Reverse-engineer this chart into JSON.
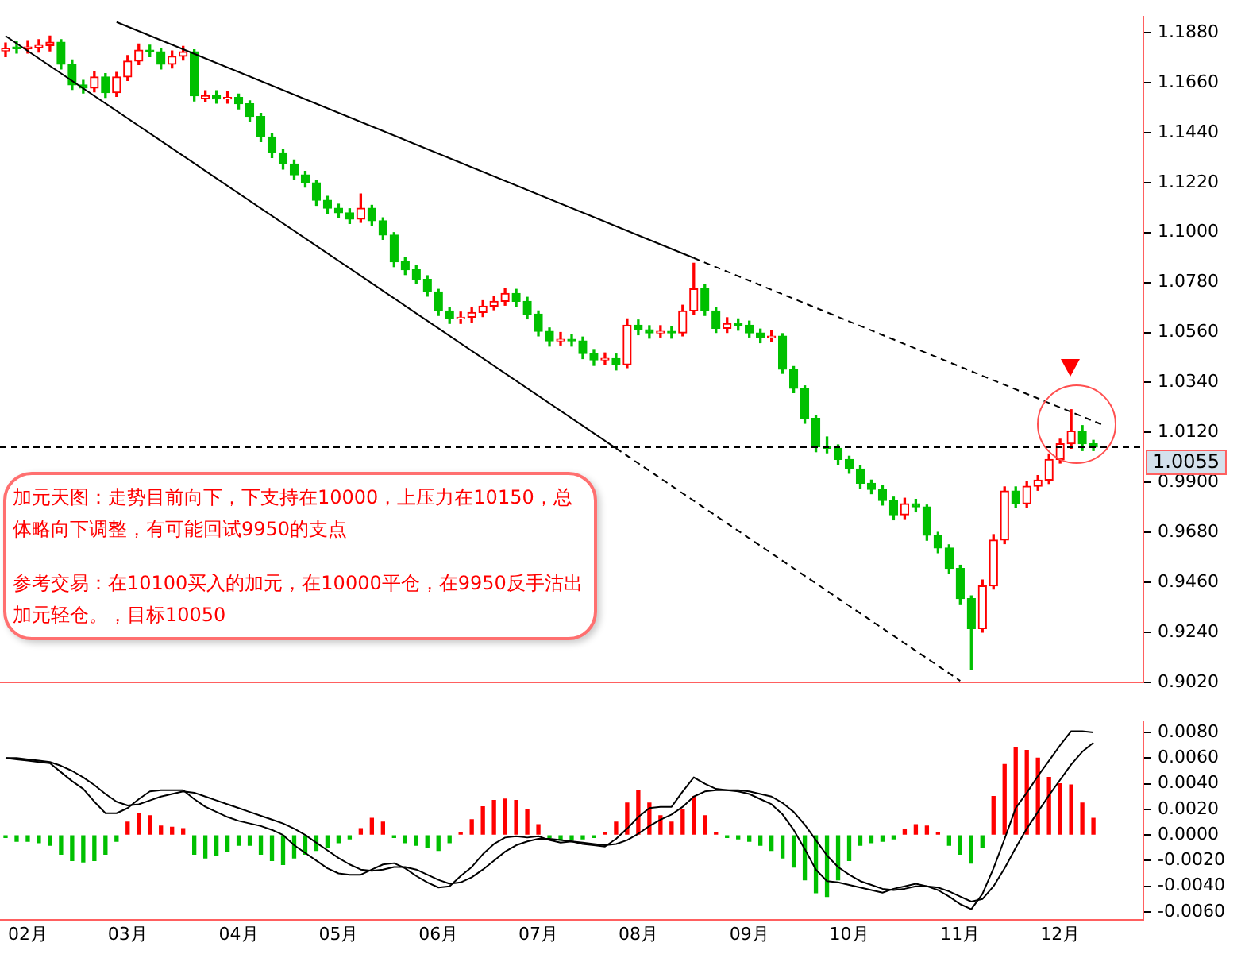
{
  "chart_data": [
    {
      "type": "candlestick",
      "categories": [
        null,
        null,
        null,
        null,
        null,
        null,
        null,
        null,
        null,
        null,
        null,
        null,
        null,
        null,
        null,
        null,
        null,
        null,
        null,
        null,
        null,
        null,
        null,
        null,
        null,
        null,
        null,
        null,
        null,
        null,
        null,
        null,
        null,
        null,
        null,
        null,
        null,
        null,
        null,
        null,
        null,
        null,
        null,
        null,
        null,
        null,
        null,
        null,
        null,
        null,
        null,
        null,
        null,
        null,
        null,
        null,
        null,
        null,
        null,
        null,
        null,
        null,
        null,
        null,
        null,
        null,
        null,
        null,
        null,
        null,
        null,
        null,
        null,
        null,
        null,
        null,
        null,
        null,
        null,
        null,
        null,
        null,
        null,
        null,
        null,
        null,
        null,
        null,
        null,
        null,
        null,
        null,
        null,
        null,
        null,
        null,
        null,
        null,
        null,
        null,
        null,
        null,
        null
      ],
      "colors": [
        "#ff0000",
        "#00c000",
        "#ff0000",
        "#ff0000",
        "#ff0000",
        "#00c000",
        "#00c000",
        "#00c000",
        "#ff0000",
        "#00c000",
        "#ff0000",
        "#ff0000",
        "#ff0000",
        "#00c000",
        "#00c000",
        "#ff0000",
        "#ff0000",
        "#00c000",
        "#ff0000",
        "#00c000",
        "#ff0000",
        "#00c000",
        "#00c000",
        "#00c000",
        "#00c000",
        "#00c000",
        "#00c000",
        "#00c000",
        "#00c000",
        "#00c000",
        "#00c000",
        "#00c000",
        "#ff0000",
        "#00c000",
        "#00c000",
        "#00c000",
        "#00c000",
        "#00c000",
        "#00c000",
        "#00c000",
        "#00c000",
        "#ff0000",
        "#ff0000",
        "#ff0000",
        "#ff0000",
        "#ff0000",
        "#00c000",
        "#00c000",
        "#00c000",
        "#00c000",
        "#ff0000",
        "#00c000",
        "#00c000",
        "#00c000",
        "#ff0000",
        "#00c000",
        "#ff0000",
        "#00c000",
        "#00c000",
        "#ff0000",
        "#00c000",
        "#ff0000",
        "#ff0000",
        "#00c000",
        "#00c000",
        "#ff0000",
        "#00c000",
        "#00c000",
        "#00c000",
        "#ff0000",
        "#00c000",
        "#00c000",
        "#00c000",
        "#00c000",
        "#00c000",
        "#00c000",
        "#00c000",
        "#00c000",
        "#00c000",
        "#00c000",
        "#00c000",
        "#ff0000",
        "#00c000",
        "#00c000",
        "#00c000",
        "#00c000",
        "#00c000",
        "#00c000",
        "#ff0000",
        "#ff0000",
        "#ff0000",
        "#00c000",
        "#ff0000",
        "#ff0000",
        "#ff0000",
        "#ff0000",
        "#ff0000",
        "#00c000",
        "#00c000",
        null,
        null,
        null,
        null
      ],
      "ohlc": [
        [
          1.18,
          1.1835,
          1.1775,
          1.181
        ],
        [
          1.1815,
          1.184,
          1.179,
          1.181
        ],
        [
          1.181,
          1.1845,
          1.179,
          1.1817
        ],
        [
          1.1817,
          1.185,
          1.1795,
          1.1824
        ],
        [
          1.1824,
          1.1865,
          1.18,
          1.1838
        ],
        [
          1.1838,
          1.185,
          1.172,
          1.1741
        ],
        [
          1.1741,
          1.176,
          1.163,
          1.165
        ],
        [
          1.165,
          1.167,
          1.1615,
          1.1636
        ],
        [
          1.1636,
          1.171,
          1.162,
          1.1685
        ],
        [
          1.1685,
          1.17,
          1.1595,
          1.1616
        ],
        [
          1.1616,
          1.1705,
          1.16,
          1.1685
        ],
        [
          1.1685,
          1.178,
          1.167,
          1.1755
        ],
        [
          1.1755,
          1.183,
          1.174,
          1.1803
        ],
        [
          1.1803,
          1.1825,
          1.1775,
          1.1796
        ],
        [
          1.1796,
          1.181,
          1.172,
          1.1741
        ],
        [
          1.1741,
          1.18,
          1.1725,
          1.1776
        ],
        [
          1.1776,
          1.182,
          1.176,
          1.1796
        ],
        [
          1.1796,
          1.1805,
          1.158,
          1.1602
        ],
        [
          1.159,
          1.1625,
          1.1575,
          1.1602
        ],
        [
          1.1602,
          1.1625,
          1.157,
          1.1588
        ],
        [
          1.1588,
          1.162,
          1.157,
          1.1595
        ],
        [
          1.1595,
          1.161,
          1.1545,
          1.1567
        ],
        [
          1.1567,
          1.158,
          1.149,
          1.1511
        ],
        [
          1.1511,
          1.1525,
          1.14,
          1.1421
        ],
        [
          1.1421,
          1.1435,
          1.133,
          1.1351
        ],
        [
          1.1351,
          1.1365,
          1.128,
          1.1302
        ],
        [
          1.1302,
          1.132,
          1.1235,
          1.1254
        ],
        [
          1.1254,
          1.127,
          1.12,
          1.1219
        ],
        [
          1.1219,
          1.123,
          1.112,
          1.1142
        ],
        [
          1.1142,
          1.116,
          1.1085,
          1.1107
        ],
        [
          1.1107,
          1.1125,
          1.1065,
          1.1087
        ],
        [
          1.1087,
          1.1105,
          1.104,
          1.1059
        ],
        [
          1.1059,
          1.117,
          1.1045,
          1.1107
        ],
        [
          1.1107,
          1.112,
          1.103,
          1.1052
        ],
        [
          1.1052,
          1.1065,
          1.097,
          1.0989
        ],
        [
          1.0989,
          1.1,
          1.085,
          1.0871
        ],
        [
          1.0871,
          1.089,
          1.0815,
          1.0836
        ],
        [
          1.0836,
          1.0855,
          1.0775,
          1.0794
        ],
        [
          1.0794,
          1.081,
          1.072,
          1.0739
        ],
        [
          1.0739,
          1.075,
          1.0635,
          1.0655
        ],
        [
          1.0655,
          1.067,
          1.06,
          1.062
        ],
        [
          1.062,
          1.065,
          1.06,
          1.0627
        ],
        [
          1.0627,
          1.067,
          1.0605,
          1.0648
        ],
        [
          1.0648,
          1.07,
          1.063,
          1.0676
        ],
        [
          1.0676,
          1.072,
          1.066,
          1.0697
        ],
        [
          1.0697,
          1.0755,
          1.068,
          1.0732
        ],
        [
          1.0732,
          1.075,
          1.0675,
          1.0697
        ],
        [
          1.0697,
          1.0715,
          1.062,
          1.0641
        ],
        [
          1.0641,
          1.0655,
          1.0545,
          1.0565
        ],
        [
          1.0565,
          1.058,
          1.05,
          1.0523
        ],
        [
          1.0523,
          1.056,
          1.0505,
          1.053
        ],
        [
          1.053,
          1.055,
          1.05,
          1.0523
        ],
        [
          1.0523,
          1.054,
          1.0445,
          1.0467
        ],
        [
          1.0467,
          1.0485,
          1.0415,
          1.0439
        ],
        [
          1.0439,
          1.047,
          1.042,
          1.0445
        ],
        [
          1.0445,
          1.0465,
          1.0395,
          1.0418
        ],
        [
          1.0418,
          1.062,
          1.0405,
          1.0592
        ],
        [
          1.0592,
          1.0615,
          1.055,
          1.0572
        ],
        [
          1.0572,
          1.059,
          1.0535,
          1.0558
        ],
        [
          1.0558,
          1.059,
          1.054,
          1.0565
        ],
        [
          1.0565,
          1.0585,
          1.0535,
          1.0558
        ],
        [
          1.0558,
          1.068,
          1.0545,
          1.0655
        ],
        [
          1.0655,
          1.0865,
          1.064,
          1.0752
        ],
        [
          1.0752,
          1.077,
          1.0635,
          1.0655
        ],
        [
          1.0655,
          1.067,
          1.056,
          1.0578
        ],
        [
          1.0578,
          1.0625,
          1.056,
          1.0599
        ],
        [
          1.0599,
          1.062,
          1.057,
          1.0592
        ],
        [
          1.0592,
          1.061,
          1.054,
          1.0558
        ],
        [
          1.0558,
          1.0575,
          1.0515,
          1.0537
        ],
        [
          1.0537,
          1.057,
          1.052,
          1.0544
        ],
        [
          1.0544,
          1.0555,
          1.038,
          1.0398
        ],
        [
          1.0398,
          1.041,
          1.0295,
          1.0314
        ],
        [
          1.0314,
          1.0325,
          1.016,
          1.0182
        ],
        [
          1.0182,
          1.0195,
          1.0035,
          1.0056
        ],
        [
          1.0056,
          1.01,
          1.003,
          1.005
        ],
        [
          1.005,
          1.0065,
          0.998,
          1.0001
        ],
        [
          1.0001,
          1.0015,
          0.994,
          0.9959
        ],
        [
          0.9959,
          0.9975,
          0.9875,
          0.9896
        ],
        [
          0.9896,
          0.991,
          0.985,
          0.9869
        ],
        [
          0.9869,
          0.9885,
          0.98,
          0.982
        ],
        [
          0.982,
          0.9835,
          0.9735,
          0.9757
        ],
        [
          0.9757,
          0.983,
          0.974,
          0.9806
        ],
        [
          0.9806,
          0.9825,
          0.977,
          0.9792
        ],
        [
          0.9792,
          0.98,
          0.9645,
          0.9667
        ],
        [
          0.9667,
          0.968,
          0.959,
          0.9611
        ],
        [
          0.9611,
          0.9625,
          0.95,
          0.9521
        ],
        [
          0.9521,
          0.9535,
          0.9365,
          0.9388
        ],
        [
          0.9388,
          0.94,
          0.9075,
          0.9256
        ],
        [
          0.9256,
          0.947,
          0.924,
          0.9444
        ],
        [
          0.9444,
          0.967,
          0.943,
          0.9646
        ],
        [
          0.9646,
          0.988,
          0.963,
          0.9862
        ],
        [
          0.9862,
          0.988,
          0.979,
          0.9806
        ],
        [
          0.9806,
          0.9905,
          0.979,
          0.9883
        ],
        [
          0.9883,
          0.993,
          0.9865,
          0.991
        ],
        [
          0.991,
          1.0025,
          0.9895,
          1.0001
        ],
        [
          1.0001,
          1.009,
          0.9985,
          1.007
        ],
        [
          1.007,
          1.022,
          1.005,
          1.0126
        ],
        [
          1.0126,
          1.015,
          1.004,
          1.007
        ],
        [
          1.007,
          1.0085,
          1.004,
          1.0055
        ],
        null,
        null,
        null,
        null
      ],
      "series": [
        {
          "type": "line",
          "color": "#000000",
          "line_style": "solid",
          "values": [
            null,
            null,
            null,
            null,
            null,
            null,
            null,
            null,
            null,
            null,
            1.1927,
            null,
            null,
            null,
            null,
            null,
            null,
            null,
            null,
            null,
            null,
            null,
            null,
            null,
            null,
            null,
            null,
            null,
            null,
            null,
            null,
            null,
            null,
            null,
            null,
            null,
            null,
            null,
            null,
            null,
            null,
            null,
            null,
            null,
            null,
            null,
            null,
            null,
            null,
            null,
            null,
            null,
            null,
            null,
            null,
            null,
            null,
            null,
            null,
            null,
            null,
            null,
            1.0888,
            null,
            null,
            null,
            null,
            null,
            null,
            null,
            null,
            null,
            null,
            null,
            null,
            null,
            null,
            null,
            null,
            null,
            null,
            null,
            null,
            null,
            null,
            null,
            null,
            null,
            null,
            null,
            null,
            null,
            null,
            null,
            null,
            null,
            null,
            null,
            null,
            null,
            null,
            null,
            null
          ]
        },
        {
          "type": "line",
          "color": "#000000",
          "line_style": "dashed",
          "values": [
            null,
            null,
            null,
            null,
            null,
            null,
            null,
            null,
            null,
            null,
            null,
            null,
            null,
            null,
            null,
            null,
            null,
            null,
            null,
            null,
            null,
            null,
            null,
            null,
            null,
            null,
            null,
            null,
            null,
            null,
            null,
            null,
            null,
            null,
            null,
            null,
            null,
            null,
            null,
            null,
            null,
            null,
            null,
            null,
            null,
            null,
            null,
            null,
            null,
            null,
            null,
            null,
            null,
            null,
            null,
            null,
            null,
            null,
            null,
            null,
            null,
            null,
            1.0888,
            null,
            null,
            null,
            null,
            null,
            null,
            null,
            null,
            null,
            null,
            null,
            null,
            null,
            null,
            null,
            null,
            null,
            null,
            null,
            null,
            null,
            null,
            null,
            null,
            null,
            null,
            null,
            null,
            null,
            null,
            null,
            null,
            null,
            null,
            null,
            null,
            1.015,
            null,
            null,
            null
          ]
        },
        {
          "type": "line",
          "color": "#000000",
          "line_style": "solid",
          "values": [
            1.1866,
            null,
            null,
            null,
            null,
            null,
            null,
            null,
            null,
            null,
            null,
            null,
            null,
            null,
            null,
            null,
            null,
            null,
            null,
            null,
            null,
            null,
            null,
            null,
            null,
            null,
            null,
            null,
            null,
            null,
            null,
            null,
            null,
            null,
            null,
            null,
            null,
            null,
            null,
            null,
            null,
            null,
            null,
            null,
            null,
            null,
            null,
            null,
            null,
            null,
            null,
            null,
            null,
            null,
            null,
            1.005,
            null,
            null,
            null,
            null,
            null,
            null,
            null,
            null,
            null,
            null,
            null,
            null,
            null,
            null,
            null,
            null,
            null,
            null,
            null,
            null,
            null,
            null,
            null,
            null,
            null,
            null,
            null,
            null,
            null,
            null,
            null,
            null,
            null,
            null,
            null,
            null,
            null,
            null,
            null,
            null,
            null,
            null,
            null,
            null,
            null,
            null,
            null
          ]
        },
        {
          "type": "line",
          "color": "#000000",
          "line_style": "dashed",
          "values": [
            null,
            null,
            null,
            null,
            null,
            null,
            null,
            null,
            null,
            null,
            null,
            null,
            null,
            null,
            null,
            null,
            null,
            null,
            null,
            null,
            null,
            null,
            null,
            null,
            null,
            null,
            null,
            null,
            null,
            null,
            null,
            null,
            null,
            null,
            null,
            null,
            null,
            null,
            null,
            null,
            null,
            null,
            null,
            null,
            null,
            null,
            null,
            null,
            null,
            null,
            null,
            null,
            null,
            null,
            null,
            1.005,
            null,
            null,
            null,
            null,
            null,
            null,
            null,
            null,
            null,
            null,
            null,
            null,
            null,
            null,
            null,
            null,
            null,
            null,
            null,
            null,
            null,
            null,
            null,
            null,
            null,
            null,
            null,
            null,
            null,
            null,
            0.9026,
            null,
            null,
            null,
            null,
            null,
            null,
            null,
            null,
            null,
            null,
            null,
            null,
            null,
            null,
            null,
            null
          ]
        }
      ],
      "ylim": [
        0.902,
        1.195
      ],
      "yticks": [
        {
          "value": 1.188,
          "label": "1.1880"
        },
        {
          "value": 1.166,
          "label": "1.1660"
        },
        {
          "value": 1.144,
          "label": "1.1440"
        },
        {
          "value": 1.122,
          "label": "1.1220"
        },
        {
          "value": 1.1,
          "label": "1.1000"
        },
        {
          "value": 1.078,
          "label": "1.0780"
        },
        {
          "value": 1.056,
          "label": "1.0560"
        },
        {
          "value": 1.034,
          "label": "1.0340"
        },
        {
          "value": 1.012,
          "label": "1.0120"
        },
        {
          "value": 0.99,
          "label": "0.9900"
        },
        {
          "value": 0.968,
          "label": "0.9680"
        },
        {
          "value": 0.946,
          "label": "0.9460"
        },
        {
          "value": 0.924,
          "label": "0.9240"
        },
        {
          "value": 0.902,
          "label": "0.9020"
        }
      ],
      "ref_lines": [
        {
          "axis": "y",
          "value": 1.0055,
          "label": "1.0055",
          "color": "#000000",
          "line_style": "dashed"
        }
      ],
      "annotations": [
        "加元天图：走势目前向下，下支持在10000，上压力在10150，总体略向下调整，有可能回试9950的支点",
        "参考交易：在10100买入的加元，在10000平仓，在9950反手沽出加元轻仓。，目标10050"
      ],
      "tick_labels": "y"
    },
    {
      "type": "bar",
      "categories": [
        null,
        null,
        "02月",
        null,
        null,
        null,
        null,
        null,
        null,
        null,
        null,
        "03月",
        null,
        null,
        null,
        null,
        null,
        null,
        null,
        null,
        null,
        "04月",
        null,
        null,
        null,
        null,
        null,
        null,
        null,
        null,
        "05月",
        null,
        null,
        null,
        null,
        null,
        null,
        null,
        null,
        "06月",
        null,
        null,
        null,
        null,
        null,
        null,
        null,
        null,
        "07月",
        null,
        null,
        null,
        null,
        null,
        null,
        null,
        null,
        "08月",
        null,
        null,
        null,
        null,
        null,
        null,
        null,
        null,
        null,
        "09月",
        null,
        null,
        null,
        null,
        null,
        null,
        null,
        null,
        "10月",
        null,
        null,
        null,
        null,
        null,
        null,
        null,
        null,
        null,
        "11月",
        null,
        null,
        null,
        null,
        null,
        null,
        null,
        null,
        "12月",
        null,
        null,
        null,
        null,
        null,
        null,
        null
      ],
      "series": [
        {
          "type": "bar",
          "color": "#ff0000",
          "values": [
            null,
            null,
            null,
            null,
            null,
            null,
            null,
            null,
            null,
            null,
            null,
            0.001,
            0.0017,
            0.0015,
            0.0007,
            0.0006,
            0.0005,
            null,
            null,
            null,
            null,
            null,
            null,
            null,
            null,
            null,
            null,
            null,
            null,
            null,
            null,
            null,
            0.0005,
            0.0013,
            0.001,
            null,
            null,
            null,
            null,
            null,
            null,
            0.0002,
            0.0012,
            0.0022,
            0.0027,
            0.0028,
            0.0027,
            0.002,
            0.0008,
            null,
            null,
            null,
            null,
            null,
            0.0002,
            0.001,
            0.0025,
            0.0035,
            0.0025,
            0.0015,
            0.001,
            0.002,
            0.003,
            0.0015,
            0.0002,
            null,
            null,
            null,
            null,
            null,
            null,
            null,
            null,
            null,
            null,
            null,
            null,
            null,
            null,
            null,
            null,
            0.0004,
            0.0008,
            0.0007,
            0.0002,
            null,
            null,
            null,
            null,
            0.003,
            0.0055,
            0.0068,
            0.0066,
            0.006,
            0.0045,
            0.004,
            0.0039,
            0.0025,
            0.0013,
            null,
            null,
            null,
            null
          ]
        },
        {
          "type": "bar",
          "color": "#00c000",
          "values": [
            -0.0002,
            -0.0005,
            -0.0005,
            -0.0006,
            -0.0008,
            -0.0015,
            -0.002,
            -0.0021,
            -0.002,
            -0.0015,
            -0.0005,
            null,
            null,
            null,
            null,
            null,
            null,
            -0.0015,
            -0.0018,
            -0.0016,
            -0.0013,
            -0.0008,
            -0.0008,
            -0.0015,
            -0.002,
            -0.0023,
            -0.0018,
            -0.0015,
            -0.0012,
            -0.001,
            -0.0006,
            -0.0003,
            null,
            null,
            null,
            -0.0002,
            -0.0006,
            -0.0008,
            -0.001,
            -0.0012,
            -0.0006,
            null,
            null,
            null,
            null,
            null,
            null,
            null,
            null,
            -0.0002,
            -0.0004,
            -0.0004,
            -0.0003,
            -0.0002,
            null,
            null,
            null,
            null,
            null,
            null,
            null,
            null,
            null,
            null,
            null,
            -0.0002,
            -0.0003,
            -0.0005,
            -0.0008,
            -0.0012,
            -0.0018,
            -0.0025,
            -0.0035,
            -0.0045,
            -0.0048,
            -0.0035,
            -0.002,
            -0.0008,
            -0.0006,
            -0.0005,
            -0.0003,
            null,
            null,
            null,
            null,
            -0.0008,
            -0.0015,
            -0.0022,
            -0.001,
            null,
            null,
            null,
            null,
            null,
            null,
            null,
            null,
            null,
            null,
            null,
            null,
            null,
            null
          ]
        },
        {
          "type": "line",
          "color": "#000000",
          "values": [
            0.006,
            0.0059,
            0.0058,
            0.0057,
            0.0056,
            0.0049,
            0.0042,
            0.0036,
            0.0026,
            0.0017,
            0.0017,
            0.0021,
            0.0028,
            0.0034,
            0.0035,
            0.0035,
            0.0035,
            0.0028,
            0.0022,
            0.0018,
            0.0014,
            0.0011,
            0.0009,
            0.0007,
            0.0004,
            0.0,
            -0.0008,
            -0.0014,
            -0.002,
            -0.0026,
            -0.003,
            -0.0031,
            -0.0031,
            -0.0027,
            -0.0023,
            -0.0022,
            -0.0026,
            -0.0032,
            -0.0037,
            -0.0041,
            -0.004,
            -0.0032,
            -0.0025,
            -0.0015,
            -0.0007,
            -0.0002,
            -0.0001,
            -0.0002,
            -0.0001,
            -0.0004,
            -0.0006,
            -0.0005,
            -0.0007,
            -0.0008,
            -0.0009,
            -0.0003,
            0.0005,
            0.0014,
            0.0021,
            0.0022,
            0.0022,
            0.0034,
            0.0045,
            0.004,
            0.0036,
            0.0035,
            0.0034,
            0.0032,
            0.0028,
            0.0024,
            0.0016,
            0.0004,
            -0.0011,
            -0.0027,
            -0.0036,
            -0.0037,
            -0.0039,
            -0.0041,
            -0.0043,
            -0.0045,
            -0.0042,
            -0.004,
            -0.0038,
            -0.004,
            -0.0043,
            -0.0048,
            -0.0054,
            -0.0058,
            -0.0046,
            -0.0026,
            -0.0003,
            0.0021,
            0.0033,
            0.0046,
            0.0058,
            0.007,
            0.0081,
            0.0081,
            0.008,
            null,
            null,
            null,
            null
          ]
        },
        {
          "type": "line",
          "color": "#000000",
          "values": [
            0.006,
            0.006,
            0.0059,
            0.0058,
            0.0057,
            0.0054,
            0.005,
            0.0045,
            0.0039,
            0.0032,
            0.0026,
            0.0023,
            0.0024,
            0.0027,
            0.003,
            0.0032,
            0.0034,
            0.0033,
            0.003,
            0.0027,
            0.0024,
            0.0021,
            0.0018,
            0.0015,
            0.0012,
            0.0009,
            0.0005,
            0.0,
            -0.0006,
            -0.0012,
            -0.0018,
            -0.0023,
            -0.0027,
            -0.0028,
            -0.0027,
            -0.0025,
            -0.0025,
            -0.0027,
            -0.0031,
            -0.0035,
            -0.0038,
            -0.0037,
            -0.0033,
            -0.0027,
            -0.002,
            -0.0013,
            -0.0008,
            -0.0005,
            -0.0003,
            -0.0003,
            -0.0004,
            -0.0005,
            -0.0006,
            -0.0007,
            -0.0008,
            -0.0007,
            -0.0004,
            0.0001,
            0.0007,
            0.0012,
            0.0016,
            0.0022,
            0.003,
            0.0034,
            0.0035,
            0.0035,
            0.0035,
            0.0034,
            0.0032,
            0.003,
            0.0025,
            0.0018,
            0.0008,
            -0.0004,
            -0.0016,
            -0.0025,
            -0.0031,
            -0.0036,
            -0.0039,
            -0.0042,
            -0.0043,
            -0.0042,
            -0.004,
            -0.004,
            -0.0041,
            -0.0044,
            -0.0048,
            -0.0052,
            -0.005,
            -0.004,
            -0.0026,
            -0.001,
            0.0005,
            0.0018,
            0.0031,
            0.0043,
            0.0055,
            0.0065,
            0.0072,
            null,
            null,
            null,
            null
          ]
        }
      ],
      "ylim": [
        -0.0066,
        0.0088
      ],
      "yticks": [
        {
          "value": 0.008,
          "label": "0.0080"
        },
        {
          "value": 0.006,
          "label": "0.0060"
        },
        {
          "value": 0.004,
          "label": "0.0040"
        },
        {
          "value": 0.002,
          "label": "0.0020"
        },
        {
          "value": 0,
          "label": "0.0000"
        },
        {
          "value": -0.002,
          "label": "-0.0020"
        },
        {
          "value": -0.004,
          "label": "-0.0040"
        },
        {
          "value": -0.006,
          "label": "-0.0060"
        }
      ]
    }
  ]
}
